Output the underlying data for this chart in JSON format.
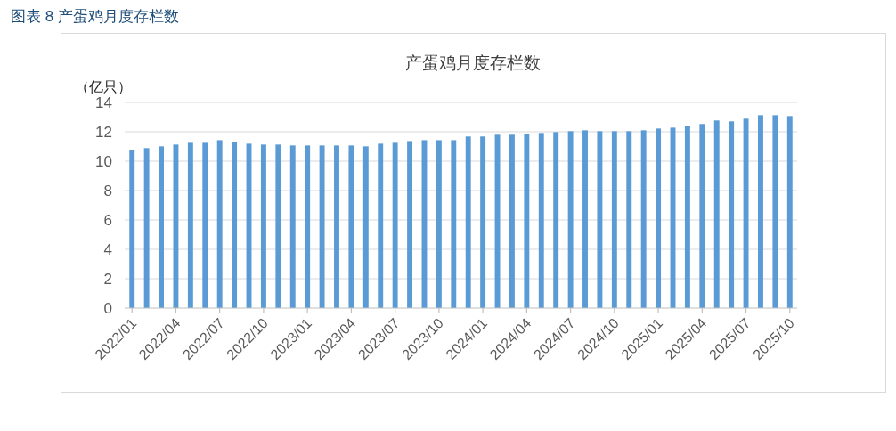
{
  "chart_data": {
    "type": "bar",
    "title": "图表 8  产蛋鸡月度存栏数",
    "subtitle": "产蛋鸡月度存栏数",
    "ylabel": "（亿只）",
    "categories": [
      "2022/01",
      null,
      null,
      "2022/04",
      null,
      null,
      "2022/07",
      null,
      null,
      "2022/10",
      null,
      null,
      "2023/01",
      null,
      null,
      "2023/04",
      null,
      null,
      "2023/07",
      null,
      null,
      "2023/10",
      null,
      null,
      "2024/01",
      null,
      null,
      "2024/04",
      null,
      null,
      "2024/07",
      null,
      null,
      "2024/10",
      null,
      null,
      "2025/01",
      null,
      null,
      "2025/04",
      null,
      null,
      "2025/07",
      null,
      null,
      "2025/10"
    ],
    "values": [
      10.77,
      10.89,
      11.01,
      11.13,
      11.25,
      11.25,
      11.43,
      11.31,
      11.19,
      11.13,
      11.13,
      11.07,
      11.07,
      11.07,
      11.07,
      11.07,
      11.01,
      11.19,
      11.25,
      11.37,
      11.43,
      11.43,
      11.43,
      11.68,
      11.68,
      11.8,
      11.8,
      11.86,
      11.92,
      11.98,
      12.04,
      12.1,
      12.04,
      12.04,
      12.04,
      12.1,
      12.22,
      12.28,
      12.4,
      12.53,
      12.77,
      12.71,
      12.89,
      13.13,
      13.13,
      13.07
    ],
    "color": "#5b9bd5",
    "ylim": [
      0,
      14
    ],
    "yticks": [
      0,
      2,
      4,
      6,
      8,
      10,
      12,
      14
    ],
    "grid": "y",
    "legend": false
  }
}
